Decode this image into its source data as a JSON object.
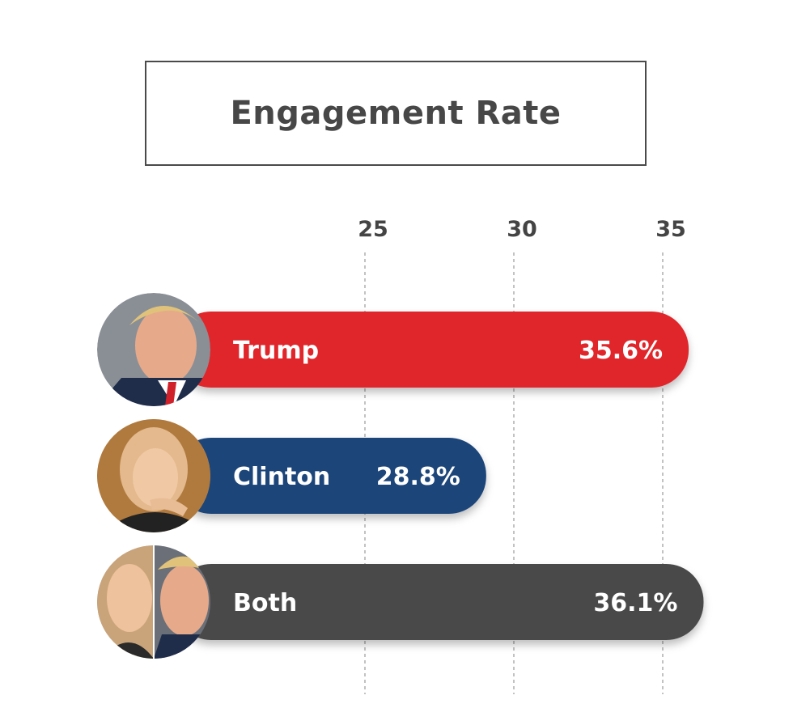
{
  "chart_data": {
    "type": "bar",
    "orientation": "horizontal",
    "title": "Engagement Rate",
    "xlabel": "",
    "ylabel": "",
    "xlim": [
      20,
      35
    ],
    "xticks": [
      25,
      30,
      35
    ],
    "grid": "vertical dashed",
    "categories": [
      "Trump",
      "Clinton",
      "Both"
    ],
    "values": [
      35.6,
      28.8,
      36.1
    ],
    "value_labels": [
      "35.6%",
      "28.8%",
      "36.1%"
    ],
    "colors": [
      "#e0252c",
      "#1e4479",
      "#4a4a4a"
    ],
    "avatars": [
      "portrait-trump-icon",
      "portrait-clinton-icon",
      "portrait-both-icon"
    ]
  }
}
